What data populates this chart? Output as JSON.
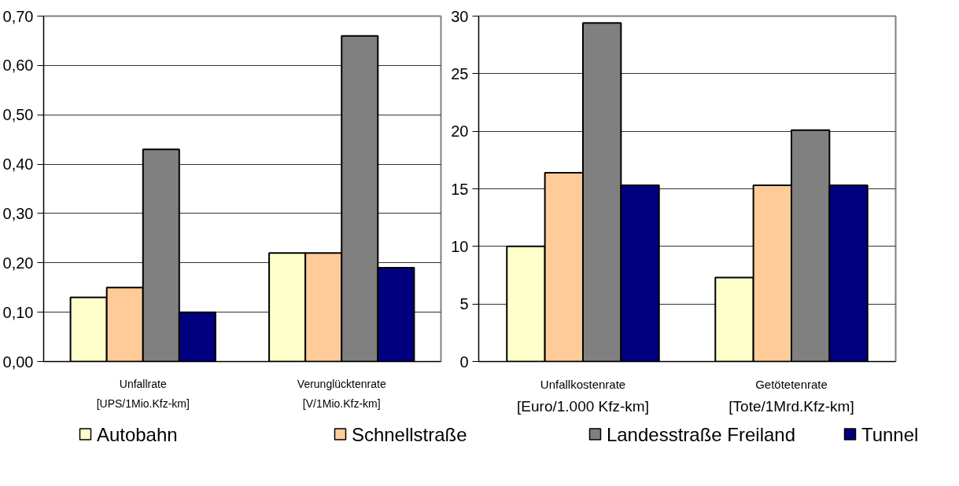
{
  "chart_data": [
    {
      "type": "bar",
      "categories": [
        "Unfallrate",
        "Verunglücktenrate"
      ],
      "annotations": [
        "[UPS/1Mio.Kfz-km]",
        "[V/1Mio.Kfz-km]"
      ],
      "series": [
        {
          "name": "Autobahn",
          "color": "#ffffcc",
          "values": [
            0.13,
            0.22
          ]
        },
        {
          "name": "Schnellstraße",
          "color": "#ffcc99",
          "values": [
            0.15,
            0.22
          ]
        },
        {
          "name": "Landesstraße Freiland",
          "color": "#808080",
          "values": [
            0.43,
            0.66
          ]
        },
        {
          "name": "Tunnel",
          "color": "#000080",
          "values": [
            0.1,
            0.19
          ]
        }
      ],
      "ylim": [
        0,
        0.7
      ],
      "yticks": [
        {
          "value": 0,
          "label": "0,00"
        },
        {
          "value": 0.1,
          "label": "0,10"
        },
        {
          "value": 0.2,
          "label": "0,20"
        },
        {
          "value": 0.3,
          "label": "0,30"
        },
        {
          "value": 0.4,
          "label": "0,40"
        },
        {
          "value": 0.5,
          "label": "0,50"
        },
        {
          "value": 0.6,
          "label": "0,60"
        },
        {
          "value": 0.7,
          "label": "0,70"
        }
      ],
      "grid": "y",
      "legend": "bottom"
    },
    {
      "type": "bar",
      "categories": [
        "Unfallkostenrate",
        "Getötetenrate"
      ],
      "annotations": [
        "[Euro/1.000 Kfz-km]",
        "[Tote/1Mrd.Kfz-km]"
      ],
      "series": [
        {
          "color": "#ffffcc",
          "values": [
            10,
            7.3
          ]
        },
        {
          "color": "#ffcc99",
          "values": [
            16.4,
            15.3
          ]
        },
        {
          "color": "#808080",
          "values": [
            29.4,
            20.1
          ]
        },
        {
          "color": "#000080",
          "values": [
            15.3,
            15.3
          ]
        }
      ],
      "ylim": [
        0,
        30
      ],
      "yticks": [
        0,
        5,
        10,
        15,
        20,
        25,
        30
      ],
      "grid": "y"
    }
  ]
}
